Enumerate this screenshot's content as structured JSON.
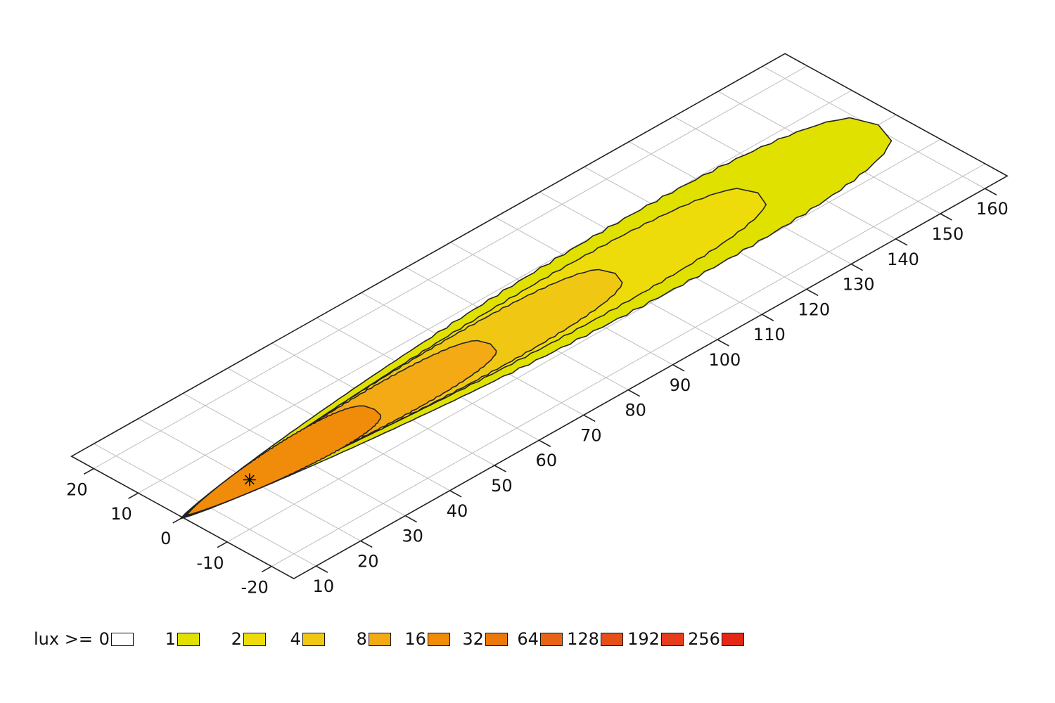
{
  "chart_data": {
    "type": "contour",
    "title": "",
    "y_axis": {
      "label": "",
      "range": [
        5,
        165
      ],
      "ticks": [
        10,
        20,
        30,
        40,
        50,
        60,
        70,
        80,
        90,
        100,
        110,
        120,
        130,
        140,
        150,
        160
      ]
    },
    "x_axis": {
      "label": "",
      "range": [
        -25,
        25
      ],
      "ticks": [
        -20,
        -10,
        0,
        10,
        20
      ]
    },
    "grid": true,
    "marker": {
      "type": "asterisk",
      "x": 0,
      "y": 20
    },
    "contour_levels": [
      {
        "lux": 1,
        "color": "#E1E100",
        "extent_y": [
          4.5,
          161
        ],
        "max_half_width": 17
      },
      {
        "lux": 2,
        "color": "#EEDC0A",
        "extent_y": [
          4.8,
          134
        ],
        "max_half_width": 12
      },
      {
        "lux": 4,
        "color": "#F0C814",
        "extent_y": [
          5,
          102
        ],
        "max_half_width": 10
      },
      {
        "lux": 8,
        "color": "#F4AA14",
        "extent_y": [
          5.5,
          74
        ],
        "max_half_width": 8
      },
      {
        "lux": 16,
        "color": "#F08C0A",
        "extent_y": [
          6,
          48
        ],
        "max_half_width": 7
      }
    ],
    "legend": {
      "prefix": "lux >= ",
      "items": [
        {
          "label": "0",
          "color": "#FFFFFF"
        },
        {
          "label": "1",
          "color": "#E1E100"
        },
        {
          "label": "2",
          "color": "#EEDC0A"
        },
        {
          "label": "4",
          "color": "#F0C814"
        },
        {
          "label": "8",
          "color": "#F4AA14"
        },
        {
          "label": "16",
          "color": "#F08C0A"
        },
        {
          "label": "32",
          "color": "#EC780A"
        },
        {
          "label": "64",
          "color": "#E86414"
        },
        {
          "label": "128",
          "color": "#E65018"
        },
        {
          "label": "192",
          "color": "#E63C1E"
        },
        {
          "label": "256",
          "color": "#E42814"
        }
      ]
    }
  }
}
